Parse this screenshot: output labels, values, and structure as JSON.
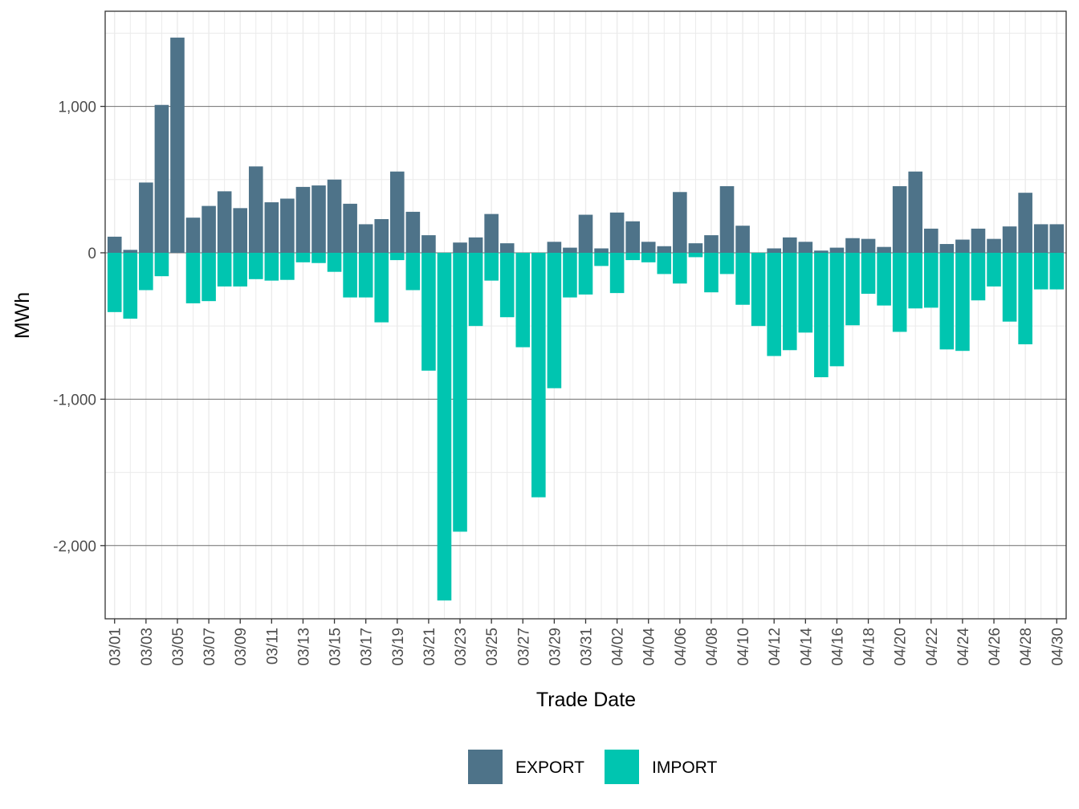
{
  "chart_data": {
    "type": "bar",
    "stacked": true,
    "title": "",
    "xlabel": "Trade Date",
    "ylabel": "MWh",
    "ylim": [
      -2500,
      1650
    ],
    "yticks": [
      -2000,
      -1000,
      0,
      1000
    ],
    "ytick_labels": [
      "-2,000",
      "-1,000",
      "0",
      "1,000"
    ],
    "categories": [
      "03/01",
      "03/02",
      "03/03",
      "03/04",
      "03/05",
      "03/06",
      "03/07",
      "03/08",
      "03/09",
      "03/10",
      "03/11",
      "03/12",
      "03/13",
      "03/14",
      "03/15",
      "03/16",
      "03/17",
      "03/18",
      "03/19",
      "03/20",
      "03/21",
      "03/22",
      "03/23",
      "03/24",
      "03/25",
      "03/26",
      "03/27",
      "03/28",
      "03/29",
      "03/30",
      "03/31",
      "04/01",
      "04/02",
      "04/03",
      "04/04",
      "04/05",
      "04/06",
      "04/07",
      "04/08",
      "04/09",
      "04/10",
      "04/11",
      "04/12",
      "04/13",
      "04/14",
      "04/15",
      "04/16",
      "04/17",
      "04/18",
      "04/19",
      "04/20",
      "04/21",
      "04/22",
      "04/23",
      "04/24",
      "04/25",
      "04/26",
      "04/27",
      "04/28",
      "04/29",
      "04/30"
    ],
    "xtick_labels": [
      "03/01",
      "03/03",
      "03/05",
      "03/07",
      "03/09",
      "03/11",
      "03/13",
      "03/15",
      "03/17",
      "03/19",
      "03/21",
      "03/23",
      "03/25",
      "03/27",
      "03/29",
      "03/31",
      "04/02",
      "04/04",
      "04/06",
      "04/08",
      "04/10",
      "04/12",
      "04/14",
      "04/16",
      "04/18",
      "04/20",
      "04/22",
      "04/24",
      "04/26",
      "04/28",
      "04/30"
    ],
    "series": [
      {
        "name": "EXPORT",
        "color": "#4e7389",
        "values": [
          110,
          20,
          480,
          1010,
          1470,
          240,
          320,
          420,
          305,
          590,
          345,
          370,
          450,
          460,
          500,
          335,
          195,
          230,
          555,
          280,
          120,
          0,
          70,
          105,
          265,
          65,
          0,
          0,
          75,
          35,
          260,
          30,
          275,
          215,
          75,
          45,
          415,
          65,
          120,
          455,
          185,
          0,
          30,
          105,
          75,
          15,
          35,
          100,
          95,
          40,
          455,
          555,
          165,
          60,
          90,
          165,
          95,
          180,
          410,
          195,
          195
        ]
      },
      {
        "name": "IMPORT",
        "color": "#00c5b0",
        "values": [
          -405,
          -450,
          -255,
          -160,
          0,
          -345,
          -330,
          -230,
          -230,
          -180,
          -190,
          -185,
          -65,
          -70,
          -130,
          -305,
          -305,
          -475,
          -50,
          -255,
          -805,
          -2375,
          -1905,
          -500,
          -190,
          -440,
          -645,
          -1670,
          -925,
          -305,
          -285,
          -90,
          -275,
          -50,
          -65,
          -145,
          -210,
          -30,
          -270,
          -145,
          -355,
          -500,
          -705,
          -665,
          -545,
          -850,
          -775,
          -495,
          -280,
          -360,
          -540,
          -380,
          -375,
          -660,
          -670,
          -325,
          -230,
          -470,
          -625,
          -250,
          -250
        ]
      }
    ],
    "legend": {
      "position": "bottom",
      "labels": [
        "EXPORT",
        "IMPORT"
      ]
    }
  }
}
